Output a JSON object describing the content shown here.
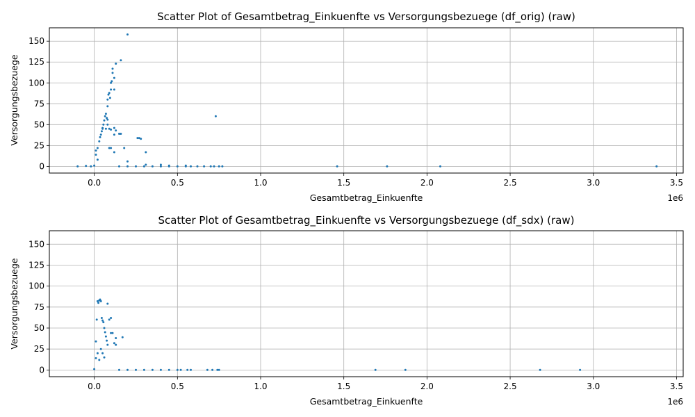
{
  "chart_data": [
    {
      "type": "scatter",
      "title": "Scatter Plot of Gesamtbetrag_Einkuenfte vs Versorgungsbezuege (df_orig) (raw)",
      "xlabel": "Gesamtbetrag_Einkuenfte",
      "ylabel": "Versorgungsbezuege",
      "x_offset_label": "1e6",
      "xlim": [
        -0.27,
        3.54
      ],
      "ylim": [
        -8,
        166
      ],
      "xticks": [
        0.0,
        0.5,
        1.0,
        1.5,
        2.0,
        2.5,
        3.0,
        3.5
      ],
      "xtick_labels": [
        "0.0",
        "0.5",
        "1.0",
        "1.5",
        "2.0",
        "2.5",
        "3.0",
        "3.5"
      ],
      "yticks": [
        0,
        25,
        50,
        75,
        100,
        125,
        150
      ],
      "ytick_labels": [
        "0",
        "25",
        "50",
        "75",
        "100",
        "125",
        "150"
      ],
      "grid": true,
      "color": "#1f77b4",
      "x_units": "millions (1e6)",
      "series": [
        {
          "values_note": "x in units of 1e6",
          "points": [
            [
              -0.1,
              0
            ],
            [
              -0.05,
              0.5
            ],
            [
              -0.02,
              0
            ],
            [
              0.0,
              1
            ],
            [
              0.01,
              14
            ],
            [
              0.01,
              19
            ],
            [
              0.02,
              8
            ],
            [
              0.02,
              22
            ],
            [
              0.03,
              30
            ],
            [
              0.035,
              35
            ],
            [
              0.04,
              38
            ],
            [
              0.045,
              42
            ],
            [
              0.05,
              46
            ],
            [
              0.055,
              50
            ],
            [
              0.06,
              55
            ],
            [
              0.065,
              60
            ],
            [
              0.07,
              63
            ],
            [
              0.075,
              58
            ],
            [
              0.08,
              72
            ],
            [
              0.08,
              80
            ],
            [
              0.085,
              86
            ],
            [
              0.09,
              88
            ],
            [
              0.095,
              82
            ],
            [
              0.1,
              92
            ],
            [
              0.1,
              100
            ],
            [
              0.105,
              102
            ],
            [
              0.11,
              112
            ],
            [
              0.11,
              117
            ],
            [
              0.12,
              106
            ],
            [
              0.12,
              92
            ],
            [
              0.13,
              123
            ],
            [
              0.16,
              127
            ],
            [
              0.2,
              158
            ],
            [
              0.05,
              45
            ],
            [
              0.07,
              45
            ],
            [
              0.09,
              45
            ],
            [
              0.1,
              44
            ],
            [
              0.12,
              46
            ],
            [
              0.13,
              43
            ],
            [
              0.15,
              39
            ],
            [
              0.16,
              39
            ],
            [
              0.08,
              50
            ],
            [
              0.08,
              56
            ],
            [
              0.09,
              22
            ],
            [
              0.1,
              22
            ],
            [
              0.12,
              17
            ],
            [
              0.12,
              38
            ],
            [
              0.18,
              22
            ],
            [
              0.2,
              6
            ],
            [
              0.26,
              34
            ],
            [
              0.27,
              34
            ],
            [
              0.28,
              33
            ],
            [
              0.31,
              17
            ],
            [
              0.31,
              2
            ],
            [
              0.4,
              2
            ],
            [
              0.45,
              1
            ],
            [
              0.55,
              1
            ],
            [
              0.73,
              60
            ],
            [
              0.15,
              0
            ],
            [
              0.2,
              0
            ],
            [
              0.25,
              0
            ],
            [
              0.3,
              0
            ],
            [
              0.35,
              0
            ],
            [
              0.4,
              0
            ],
            [
              0.45,
              0
            ],
            [
              0.5,
              0
            ],
            [
              0.55,
              0
            ],
            [
              0.58,
              0
            ],
            [
              0.62,
              0
            ],
            [
              0.66,
              0
            ],
            [
              0.7,
              0
            ],
            [
              0.72,
              0
            ],
            [
              0.75,
              0
            ],
            [
              0.77,
              0
            ],
            [
              1.46,
              0
            ],
            [
              1.76,
              0
            ],
            [
              2.08,
              0
            ],
            [
              3.38,
              0
            ]
          ]
        }
      ]
    },
    {
      "type": "scatter",
      "title": "Scatter Plot of Gesamtbetrag_Einkuenfte vs Versorgungsbezuege (df_sdx) (raw)",
      "xlabel": "Gesamtbetrag_Einkuenfte",
      "ylabel": "Versorgungsbezuege",
      "x_offset_label": "1e6",
      "xlim": [
        -0.27,
        3.54
      ],
      "ylim": [
        -8,
        166
      ],
      "xticks": [
        0.0,
        0.5,
        1.0,
        1.5,
        2.0,
        2.5,
        3.0,
        3.5
      ],
      "xtick_labels": [
        "0.0",
        "0.5",
        "1.0",
        "1.5",
        "2.0",
        "2.5",
        "3.0",
        "3.5"
      ],
      "yticks": [
        0,
        25,
        50,
        75,
        100,
        125,
        150
      ],
      "ytick_labels": [
        "0",
        "25",
        "50",
        "75",
        "100",
        "125",
        "150"
      ],
      "grid": true,
      "color": "#1f77b4",
      "x_units": "millions (1e6)",
      "series": [
        {
          "values_note": "x in units of 1e6",
          "points": [
            [
              0.0,
              1
            ],
            [
              0.01,
              14
            ],
            [
              0.01,
              34
            ],
            [
              0.015,
              60
            ],
            [
              0.02,
              82
            ],
            [
              0.025,
              80
            ],
            [
              0.03,
              83
            ],
            [
              0.035,
              84
            ],
            [
              0.04,
              82
            ],
            [
              0.045,
              62
            ],
            [
              0.05,
              59
            ],
            [
              0.055,
              57
            ],
            [
              0.06,
              50
            ],
            [
              0.065,
              45
            ],
            [
              0.07,
              40
            ],
            [
              0.075,
              35
            ],
            [
              0.08,
              30
            ],
            [
              0.08,
              79
            ],
            [
              0.09,
              60
            ],
            [
              0.1,
              62
            ],
            [
              0.1,
              44
            ],
            [
              0.11,
              44
            ],
            [
              0.12,
              32
            ],
            [
              0.13,
              30
            ],
            [
              0.13,
              38
            ],
            [
              0.17,
              39
            ],
            [
              0.04,
              25
            ],
            [
              0.05,
              20
            ],
            [
              0.06,
              15
            ],
            [
              0.03,
              12
            ],
            [
              0.02,
              20
            ],
            [
              0.15,
              0
            ],
            [
              0.2,
              0
            ],
            [
              0.25,
              0
            ],
            [
              0.3,
              0
            ],
            [
              0.35,
              0
            ],
            [
              0.4,
              0
            ],
            [
              0.45,
              0
            ],
            [
              0.5,
              0
            ],
            [
              0.52,
              0
            ],
            [
              0.56,
              0
            ],
            [
              0.58,
              0
            ],
            [
              0.68,
              0
            ],
            [
              0.71,
              0
            ],
            [
              0.74,
              0
            ],
            [
              0.75,
              0
            ],
            [
              1.69,
              0
            ],
            [
              1.87,
              0
            ],
            [
              2.68,
              0
            ],
            [
              2.92,
              0
            ]
          ]
        }
      ]
    }
  ]
}
